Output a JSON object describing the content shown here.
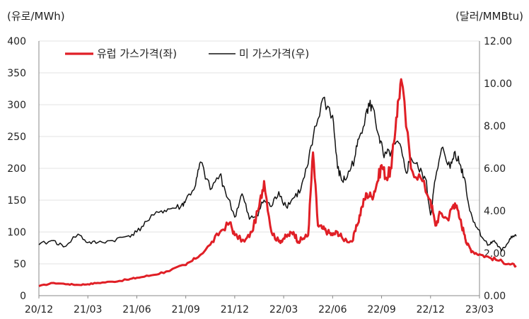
{
  "chart_data": {
    "type": "line",
    "title": "",
    "left_axis": {
      "unit_label": "(유로/MWh)",
      "ylim": [
        0,
        400
      ],
      "ticks": [
        "0",
        "50",
        "100",
        "150",
        "200",
        "250",
        "300",
        "350",
        "400"
      ]
    },
    "right_axis": {
      "unit_label": "(달러/MMBtu)",
      "ylim": [
        0,
        12
      ],
      "ticks": [
        "0.00",
        "2.00",
        "4.00",
        "6.00",
        "8.00",
        "10.00",
        "12.00"
      ]
    },
    "x_ticks": [
      "20/12",
      "21/03",
      "21/06",
      "21/09",
      "21/12",
      "22/03",
      "22/06",
      "22/09",
      "22/12",
      "23/03"
    ],
    "legend_position": "top-left",
    "series": [
      {
        "name": "유럽 가스가격(좌)",
        "axis": "left",
        "color": "#e01f26",
        "x": [
          0,
          0.3,
          0.6,
          0.8,
          1.0,
          1.2,
          1.5,
          1.8,
          2.0,
          2.3,
          2.6,
          3.0,
          3.2,
          3.5,
          3.7,
          3.9,
          4.0,
          4.2,
          4.35,
          4.5,
          4.6,
          4.75,
          4.9,
          5.0,
          5.1,
          5.2,
          5.3,
          5.4,
          5.5,
          5.6,
          5.7,
          5.8,
          5.9,
          6.0,
          6.1,
          6.2,
          6.4,
          6.5,
          6.6,
          6.7,
          6.8,
          6.9,
          7.0,
          7.1,
          7.2,
          7.3,
          7.4,
          7.6,
          7.8,
          8.0,
          8.1,
          8.2,
          8.35,
          8.45,
          8.5,
          8.6,
          8.7,
          8.75,
          8.85,
          9.0,
          9.2,
          9.4,
          9.6,
          9.75
        ],
        "y": [
          15,
          20,
          18,
          17,
          18,
          20,
          22,
          25,
          28,
          32,
          38,
          48,
          58,
          80,
          100,
          115,
          95,
          85,
          100,
          140,
          180,
          100,
          85,
          90,
          95,
          100,
          85,
          90,
          95,
          225,
          110,
          105,
          100,
          95,
          100,
          90,
          85,
          110,
          140,
          160,
          155,
          175,
          205,
          185,
          200,
          280,
          340,
          200,
          185,
          150,
          110,
          130,
          120,
          140,
          145,
          120,
          95,
          80,
          70,
          65,
          60,
          55,
          50,
          47
        ],
        "values_unit": "EUR/MWh"
      },
      {
        "name": "미 가스가격(우)",
        "axis": "right",
        "color": "#111111",
        "x": [
          0,
          0.3,
          0.5,
          0.8,
          1.0,
          1.2,
          1.5,
          1.8,
          2.0,
          2.2,
          2.5,
          2.7,
          2.9,
          3.0,
          3.2,
          3.3,
          3.5,
          3.7,
          3.8,
          4.0,
          4.15,
          4.3,
          4.45,
          4.6,
          4.75,
          4.9,
          5.05,
          5.2,
          5.35,
          5.5,
          5.6,
          5.8,
          6.0,
          6.1,
          6.2,
          6.3,
          6.45,
          6.55,
          6.7,
          6.8,
          6.95,
          7.05,
          7.2,
          7.35,
          7.5,
          7.6,
          7.75,
          7.9,
          8.0,
          8.1,
          8.25,
          8.4,
          8.5,
          8.6,
          8.7,
          8.8,
          8.95,
          9.1,
          9.2,
          9.3,
          9.45,
          9.55,
          9.65,
          9.75
        ],
        "y": [
          2.4,
          2.6,
          2.3,
          2.9,
          2.5,
          2.5,
          2.6,
          2.8,
          3.0,
          3.5,
          4.0,
          4.1,
          4.2,
          4.5,
          5.2,
          6.3,
          5.0,
          5.7,
          5.0,
          3.7,
          4.8,
          3.6,
          3.8,
          4.5,
          4.2,
          4.9,
          4.2,
          4.6,
          5.0,
          6.2,
          7.4,
          9.3,
          8.5,
          6.0,
          5.4,
          5.6,
          6.5,
          7.5,
          8.8,
          9.0,
          7.5,
          6.5,
          6.8,
          7.2,
          5.8,
          6.5,
          6.0,
          5.5,
          3.8,
          5.5,
          7.0,
          6.0,
          6.8,
          6.2,
          5.5,
          4.0,
          3.2,
          2.6,
          2.4,
          2.6,
          2.1,
          2.4,
          2.8,
          2.8
        ],
        "values_unit": "USD/MMBtu"
      }
    ]
  }
}
